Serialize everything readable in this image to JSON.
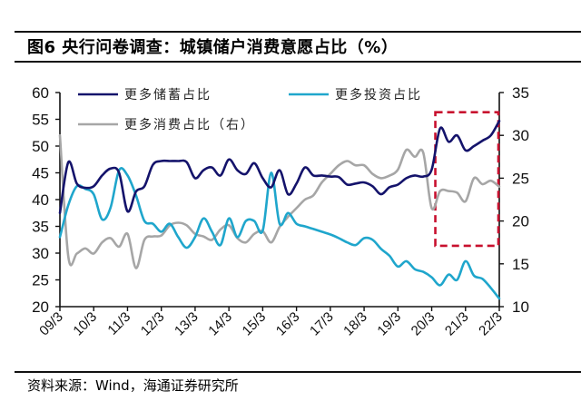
{
  "figure": {
    "title": "图6  央行问卷调查：城镇储户消费意愿占比（%）",
    "source": "资料来源：Wind，海通证券研究所"
  },
  "chart_data": {
    "type": "line",
    "title": "央行问卷调查：城镇储户消费意愿占比（%）",
    "xlabel": "",
    "ylabel": "",
    "x_tick_labels": [
      "09/3",
      "10/3",
      "11/3",
      "12/3",
      "13/3",
      "14/3",
      "15/3",
      "16/3",
      "17/3",
      "18/3",
      "19/3",
      "20/3",
      "21/3",
      "22/3"
    ],
    "x_unit": "quarter (2009Q1 to 2022Q1)",
    "x": [
      "09Q1",
      "09Q2",
      "09Q3",
      "09Q4",
      "10Q1",
      "10Q2",
      "10Q3",
      "10Q4",
      "11Q1",
      "11Q2",
      "11Q3",
      "11Q4",
      "12Q1",
      "12Q2",
      "12Q3",
      "12Q4",
      "13Q1",
      "13Q2",
      "13Q3",
      "13Q4",
      "14Q1",
      "14Q2",
      "14Q3",
      "14Q4",
      "15Q1",
      "15Q2",
      "15Q3",
      "15Q4",
      "16Q1",
      "16Q2",
      "16Q3",
      "16Q4",
      "17Q1",
      "17Q2",
      "17Q3",
      "17Q4",
      "18Q1",
      "18Q2",
      "18Q3",
      "18Q4",
      "19Q1",
      "19Q2",
      "19Q3",
      "19Q4",
      "20Q1",
      "20Q2",
      "20Q3",
      "20Q4",
      "21Q1",
      "21Q2",
      "21Q3",
      "21Q4",
      "22Q1"
    ],
    "y_left": {
      "ylim": [
        20,
        60
      ],
      "ticks": [
        20,
        25,
        30,
        35,
        40,
        45,
        50,
        55,
        60
      ]
    },
    "y_right": {
      "ylim": [
        10,
        35
      ],
      "ticks": [
        10,
        15,
        20,
        25,
        30,
        35
      ]
    },
    "series": [
      {
        "name": "更多储蓄占比",
        "axis": "left",
        "color": "#14136b",
        "values": [
          37.5,
          47.0,
          43.0,
          42.2,
          42.5,
          44.5,
          45.8,
          45.0,
          37.8,
          41.5,
          42.5,
          46.5,
          47.2,
          47.2,
          47.2,
          47.0,
          44.0,
          45.5,
          46.0,
          44.5,
          47.5,
          45.5,
          44.8,
          46.8,
          44.0,
          42.3,
          45.5,
          41.0,
          43.0,
          46.0,
          44.5,
          44.5,
          44.3,
          44.2,
          42.8,
          43.0,
          43.2,
          42.5,
          41.0,
          42.3,
          42.8,
          44.0,
          44.5,
          44.3,
          45.6,
          53.3,
          50.8,
          52.0,
          49.2,
          50.0,
          51.0,
          52.0,
          54.7
        ]
      },
      {
        "name": "更多投资占比",
        "axis": "left",
        "color": "#1fa6cc",
        "values": [
          33.0,
          39.0,
          42.5,
          42.0,
          41.0,
          36.3,
          38.5,
          45.5,
          44.5,
          40.8,
          36.0,
          35.5,
          34.0,
          35.5,
          33.0,
          31.0,
          33.0,
          36.5,
          34.0,
          31.5,
          36.5,
          33.0,
          36.0,
          36.0,
          34.2,
          45.0,
          35.5,
          37.5,
          35.5,
          35.0,
          34.5,
          34.0,
          33.5,
          32.8,
          32.0,
          31.5,
          32.8,
          32.5,
          30.8,
          29.5,
          27.5,
          28.5,
          27.0,
          26.5,
          25.5,
          24.0,
          26.0,
          25.0,
          28.5,
          25.8,
          25.2,
          23.5,
          21.5
        ]
      },
      {
        "name": "更多消费占比（右）",
        "axis": "right",
        "color": "#a6a6a6",
        "values": [
          30.0,
          15.8,
          16.2,
          16.8,
          16.2,
          17.5,
          18.0,
          17.0,
          18.5,
          14.5,
          17.8,
          18.2,
          18.3,
          19.5,
          19.8,
          19.5,
          18.5,
          18.2,
          17.8,
          19.0,
          19.5,
          18.0,
          17.5,
          18.5,
          18.8,
          17.5,
          19.3,
          20.5,
          21.5,
          22.5,
          23.0,
          24.5,
          25.5,
          26.5,
          27.0,
          26.5,
          26.5,
          25.5,
          25.0,
          25.3,
          26.0,
          28.3,
          27.5,
          28.0,
          21.5,
          23.5,
          23.5,
          23.3,
          22.3,
          25.0,
          24.3,
          24.7,
          24.0
        ]
      }
    ],
    "legend": {
      "placement": "top-left, inside plot",
      "entries": [
        "更多储蓄占比",
        "更多投资占比",
        "更多消费占比（右）"
      ]
    },
    "annotations": [
      {
        "type": "dashed-rectangle",
        "color": "#c8102e",
        "x_range": [
          "20Q1",
          "22Q1"
        ],
        "y_right_range": [
          17.1,
          32.7
        ]
      }
    ],
    "grid": false
  }
}
